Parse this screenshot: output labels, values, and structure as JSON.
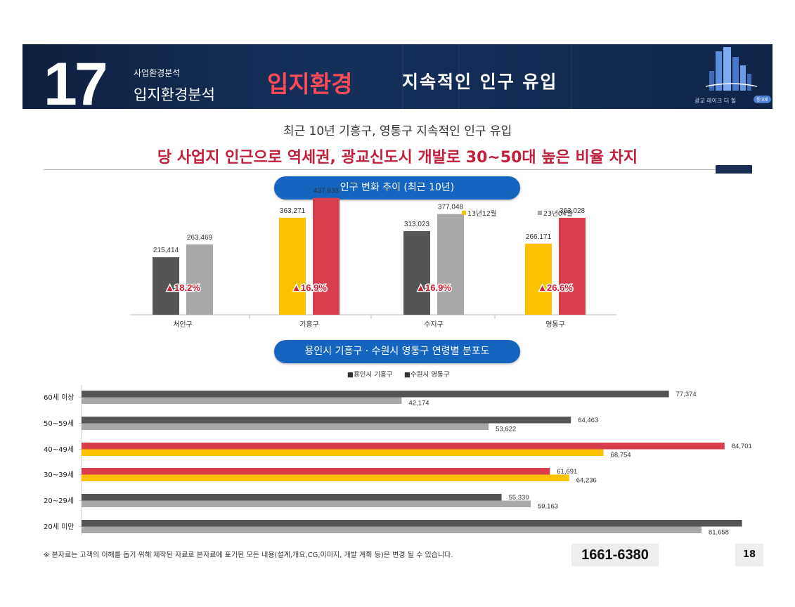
{
  "header": {
    "section_number": "17",
    "section_small": "사업환경분석",
    "section_large": "입지환경분석",
    "title": "입지환경",
    "subtitle": "지속적인 인구 유입",
    "logo_text": "광교 레이크 더 힐",
    "logo_badge": "통대제"
  },
  "headline": "최근 10년 기흥구, 영통구 지속적인 인구 유입",
  "subheadline": "당 사업지 인근으로 역세권, 광교신도시 개발로 30~50대 높은 비율 차지",
  "chart1_pill": "인구 변화 추이 (최근 10년)",
  "chart2_pill": "용인시 기흥구 · 수원시 영통구 연령별 분포도",
  "chart_data": [
    {
      "type": "bar",
      "categories": [
        "처인구",
        "기흥구",
        "수지구",
        "영통구"
      ],
      "series": [
        {
          "name": "13년12월",
          "values": [
            215414,
            363271,
            313023,
            266171
          ]
        },
        {
          "name": "23년04월",
          "values": [
            263469,
            437633,
            377048,
            363028
          ]
        }
      ],
      "value_labels": [
        [
          "215,414",
          "363,271",
          "313,023",
          "266,171"
        ],
        [
          "263,469",
          "437,633",
          "377,048",
          "363,028"
        ]
      ],
      "growth": [
        "▲18.2%",
        "▲16.9%",
        "▲16.9%",
        "▲26.6%"
      ],
      "legend": [
        "13년12월",
        "23년04월"
      ],
      "legend_position": "top-right",
      "colors": {
        "old_default": "#555555",
        "new_default": "#a8a8a8",
        "old_highlight": "#fcc200",
        "new_highlight": "#d93e4c",
        "growth": "#cc2236"
      },
      "highlight_categories": [
        1,
        3
      ],
      "ylim": [
        0,
        500000
      ]
    },
    {
      "type": "bar",
      "orientation": "horizontal",
      "categories": [
        "60세 이상",
        "50~59세",
        "40~49세",
        "30~39세",
        "20~29세",
        "20세 미만"
      ],
      "series": [
        {
          "name": "용인시 기흥구",
          "values": [
            77374,
            64463,
            84701,
            61691,
            55330,
            87000
          ]
        },
        {
          "name": "수원시 영통구",
          "values": [
            42174,
            53622,
            68754,
            64236,
            59163,
            81658
          ]
        }
      ],
      "value_labels": [
        [
          "77,374",
          "64,463",
          "84,701",
          "61,691",
          "55,330",
          ""
        ],
        [
          "42,174",
          "53,622",
          "68,754",
          "64,236",
          "59,163",
          "81,658"
        ]
      ],
      "legend": [
        "■용인시 기흥구",
        "■수원시 영통구"
      ],
      "legend_position": "top",
      "colors": {
        "s1_default": "#555555",
        "s2_default": "#a8a8a8",
        "s1_highlight": "#d93e4c",
        "s2_highlight": "#fcc200"
      },
      "highlight_categories": [
        2,
        3
      ],
      "xlim": [
        0,
        90000
      ]
    }
  ],
  "footer": {
    "note": "※ 본자료는 고객의 이해를 돕기 위해 제작된 자료로 본자료에 표기된 모든 내용(설계,개요,CG,이미지, 개발 계획 등)은 변경 될 수 있습니다.",
    "phone": "1661-6380",
    "page": "18"
  }
}
